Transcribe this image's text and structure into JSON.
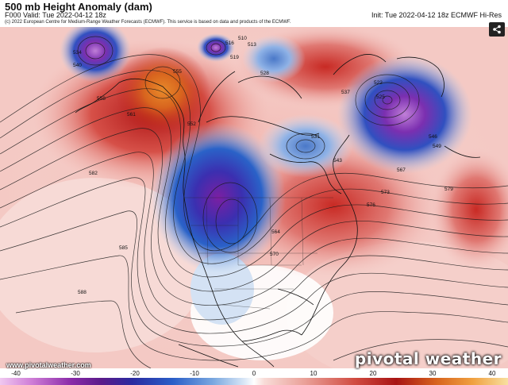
{
  "header": {
    "title": "500 mb Height Anomaly (dam)",
    "valid_prefix": "F000 Valid:",
    "valid_time": "Tue 2022-04-12 18z",
    "init": "Init: Tue 2022-04-12 18z ECMWF Hi-Res",
    "copyright": "(c) 2022 European Centre for Medium-Range Weather Forecasts (ECMWF). This service is based on data and products of the ECMWF."
  },
  "footer": {
    "url": "www.pivotalweather.com",
    "brand": "pivotal weather"
  },
  "colorbar": {
    "ticks": [
      "-40",
      "-30",
      "-20",
      "-10",
      "0",
      "10",
      "20",
      "30",
      "40"
    ]
  },
  "contour_labels": [
    "510",
    "513",
    "516",
    "519",
    "522",
    "525",
    "528",
    "531",
    "534",
    "537",
    "540",
    "543",
    "546",
    "549",
    "552",
    "555",
    "558",
    "561",
    "564",
    "567",
    "570",
    "573",
    "576",
    "579",
    "582",
    "585",
    "588"
  ],
  "colors": {
    "strong_negative": "#6a1b9a",
    "negative": "#1e4fb0",
    "weak_negative": "#a9c8ee",
    "neutral": "#ffffff",
    "weak_positive": "#f2b6b0",
    "positive": "#c42020",
    "strong_positive": "#e07a1a"
  },
  "icons": {
    "share": "share-icon"
  }
}
